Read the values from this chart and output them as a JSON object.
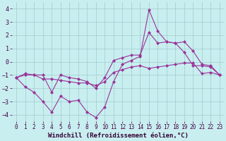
{
  "xlabel": "Windchill (Refroidissement éolien,°C)",
  "background_color": "#c8eef0",
  "grid_color": "#a0cccc",
  "line_color": "#993399",
  "xlim": [
    -0.5,
    23.5
  ],
  "ylim": [
    -4.5,
    4.5
  ],
  "xticks": [
    0,
    1,
    2,
    3,
    4,
    5,
    6,
    7,
    8,
    9,
    10,
    11,
    12,
    13,
    14,
    15,
    16,
    17,
    18,
    19,
    20,
    21,
    22,
    23
  ],
  "yticks": [
    -4,
    -3,
    -2,
    -1,
    0,
    1,
    2,
    3,
    4
  ],
  "line1": {
    "x": [
      0,
      1,
      2,
      3,
      4,
      5,
      6,
      7,
      8,
      9,
      10,
      11,
      12,
      13,
      14,
      15,
      16,
      17,
      18,
      19,
      20,
      21,
      22,
      23
    ],
    "y": [
      -1.2,
      -1.9,
      -2.3,
      -3.0,
      -3.8,
      -2.6,
      -3.0,
      -2.9,
      -3.8,
      -4.2,
      -3.4,
      -1.5,
      -0.2,
      0.1,
      0.4,
      3.9,
      2.3,
      1.5,
      1.4,
      0.7,
      -0.3,
      -0.3,
      -0.4,
      -1.0
    ]
  },
  "line2": {
    "x": [
      0,
      1,
      2,
      3,
      4,
      5,
      6,
      7,
      8,
      9,
      10,
      11,
      12,
      13,
      14,
      15,
      16,
      17,
      18,
      19,
      20,
      21,
      22,
      23
    ],
    "y": [
      -1.2,
      -0.9,
      -1.0,
      -1.0,
      -2.3,
      -1.0,
      -1.2,
      -1.3,
      -1.5,
      -2.0,
      -1.2,
      0.1,
      0.3,
      0.5,
      0.5,
      2.2,
      1.4,
      1.5,
      1.4,
      1.5,
      0.8,
      -0.2,
      -0.3,
      -1.0
    ]
  },
  "line3": {
    "x": [
      0,
      1,
      2,
      3,
      4,
      5,
      6,
      7,
      8,
      9,
      10,
      11,
      12,
      13,
      14,
      15,
      16,
      17,
      18,
      19,
      20,
      21,
      22,
      23
    ],
    "y": [
      -1.2,
      -1.0,
      -1.0,
      -1.3,
      -1.3,
      -1.4,
      -1.5,
      -1.6,
      -1.6,
      -1.8,
      -1.5,
      -0.8,
      -0.6,
      -0.4,
      -0.3,
      -0.5,
      -0.4,
      -0.3,
      -0.2,
      -0.1,
      -0.1,
      -0.9,
      -0.8,
      -1.0
    ]
  },
  "marker": "D",
  "markersize": 2.0,
  "linewidth": 0.8,
  "xlabel_fontsize": 6.5,
  "tick_fontsize": 5.5,
  "fig_width": 3.2,
  "fig_height": 2.0,
  "dpi": 100
}
